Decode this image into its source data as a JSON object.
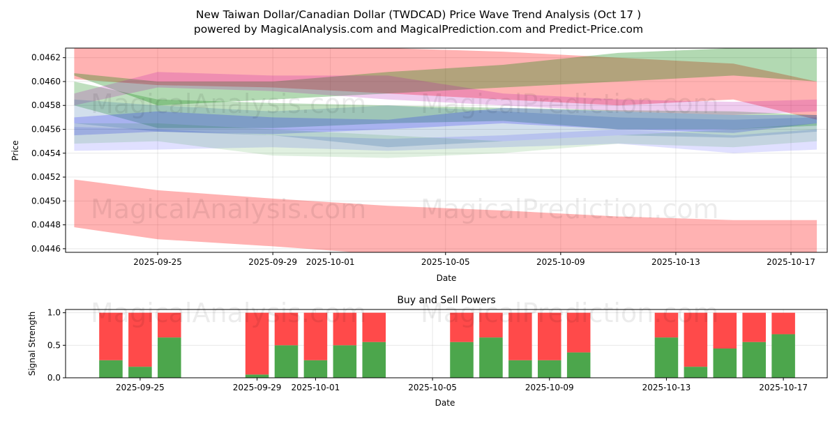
{
  "chart_data": [
    {
      "type": "area",
      "title_line1": "New Taiwan Dollar/Canadian Dollar (TWDCAD) Price Wave Trend Analysis (Oct 17 )",
      "title_line2": "powered by MagicalAnalysis.com and MagicalPrediction.com and Predict-Price.com",
      "xlabel": "Date",
      "ylabel": "Price",
      "x_origin_date": "2025-09-25",
      "xlim_days": [
        -3.2,
        23.26
      ],
      "ylim": [
        0.04457,
        0.04628
      ],
      "grid": true,
      "xticks": [
        {
          "day": 0,
          "label": "2025-09-25"
        },
        {
          "day": 4,
          "label": "2025-09-29"
        },
        {
          "day": 6,
          "label": "2025-10-01"
        },
        {
          "day": 10,
          "label": "2025-10-05"
        },
        {
          "day": 14,
          "label": "2025-10-09"
        },
        {
          "day": 18,
          "label": "2025-10-13"
        },
        {
          "day": 22,
          "label": "2025-10-17"
        }
      ],
      "yticks": [
        0.0446,
        0.0448,
        0.045,
        0.0452,
        0.0454,
        0.0456,
        0.0458,
        0.046,
        0.0462
      ],
      "ytick_labels": [
        "0.0446",
        "0.0448",
        "0.0450",
        "0.0452",
        "0.0454",
        "0.0456",
        "0.0458",
        "0.0460",
        "0.0462"
      ],
      "band_days": [
        -2.9,
        0,
        4,
        8,
        12,
        16,
        20,
        22.9
      ],
      "bands": [
        {
          "name": "red-upper",
          "color": "#ff0000",
          "alpha": 0.3,
          "upper": [
            0.04632,
            0.04632,
            0.04632,
            0.04628,
            0.04625,
            0.0462,
            0.04615,
            0.046
          ],
          "lower": [
            0.04602,
            0.04597,
            0.04595,
            0.0459,
            0.04585,
            0.0458,
            0.04585,
            0.04568
          ]
        },
        {
          "name": "green-upper",
          "color": "#008000",
          "alpha": 0.3,
          "upper": [
            0.04607,
            0.046,
            0.046,
            0.04608,
            0.04614,
            0.04624,
            0.04628,
            0.04628
          ],
          "lower": [
            0.04605,
            0.0458,
            0.04585,
            0.0459,
            0.04595,
            0.046,
            0.04605,
            0.046
          ]
        },
        {
          "name": "green-mid",
          "color": "#008000",
          "alpha": 0.25,
          "upper": [
            0.046,
            0.04585,
            0.04582,
            0.0458,
            0.04578,
            0.04576,
            0.04575,
            0.04572
          ],
          "lower": [
            0.0458,
            0.04561,
            0.04561,
            0.04565,
            0.04567,
            0.0456,
            0.0456,
            0.04563
          ]
        },
        {
          "name": "purple",
          "color": "#b000b0",
          "alpha": 0.2,
          "upper": [
            0.0459,
            0.04608,
            0.04605,
            0.04605,
            0.0459,
            0.04585,
            0.04583,
            0.04585
          ],
          "lower": [
            0.0458,
            0.04595,
            0.04592,
            0.04585,
            0.0458,
            0.04575,
            0.04572,
            0.04575
          ]
        },
        {
          "name": "teal",
          "color": "#2060a0",
          "alpha": 0.2,
          "upper": [
            0.04585,
            0.0458,
            0.04575,
            0.0458,
            0.04575,
            0.0457,
            0.04568,
            0.0457
          ],
          "lower": [
            0.04565,
            0.04558,
            0.04555,
            0.04545,
            0.0455,
            0.04555,
            0.04553,
            0.04558
          ]
        },
        {
          "name": "blue",
          "color": "#0000ff",
          "alpha": 0.2,
          "upper": [
            0.0457,
            0.04575,
            0.0457,
            0.04568,
            0.04578,
            0.04575,
            0.04572,
            0.04572
          ],
          "lower": [
            0.04555,
            0.04558,
            0.04556,
            0.0456,
            0.04565,
            0.0456,
            0.04557,
            0.04565
          ]
        },
        {
          "name": "light-blue",
          "color": "#0000ff",
          "alpha": 0.12,
          "upper": [
            0.04562,
            0.0456,
            0.04555,
            0.04552,
            0.04555,
            0.0456,
            0.04555,
            0.0456
          ],
          "lower": [
            0.04542,
            0.04543,
            0.04545,
            0.04542,
            0.04545,
            0.04548,
            0.0454,
            0.04543
          ]
        },
        {
          "name": "light-green",
          "color": "#008000",
          "alpha": 0.12,
          "upper": [
            0.04565,
            0.04565,
            0.0456,
            0.04555,
            0.0455,
            0.04555,
            0.0456,
            0.04565
          ],
          "lower": [
            0.04548,
            0.0455,
            0.04538,
            0.04536,
            0.0454,
            0.04548,
            0.04545,
            0.0455
          ]
        },
        {
          "name": "red-lower",
          "color": "#ff0000",
          "alpha": 0.3,
          "upper": [
            0.04518,
            0.04509,
            0.04502,
            0.04496,
            0.04492,
            0.04487,
            0.04484,
            0.04484
          ],
          "lower": [
            0.04478,
            0.04468,
            0.04462,
            0.04455,
            0.04452,
            0.0445,
            0.04448,
            0.04448
          ]
        }
      ]
    },
    {
      "type": "bar",
      "title": "Buy and Sell Powers",
      "xlabel": "Date",
      "ylabel": "Signal Strength",
      "x_origin_date": "2025-09-25",
      "xlim_days": [
        -2.55,
        23.5
      ],
      "ylim": [
        0,
        1.05
      ],
      "yticks": [
        0,
        0.5,
        1
      ],
      "ytick_labels": [
        "0.0",
        "0.5",
        "1.0"
      ],
      "xticks": [
        {
          "day": 0,
          "label": "2025-09-25"
        },
        {
          "day": 4,
          "label": "2025-09-29"
        },
        {
          "day": 6,
          "label": "2025-10-01"
        },
        {
          "day": 10,
          "label": "2025-10-05"
        },
        {
          "day": 14,
          "label": "2025-10-09"
        },
        {
          "day": 18,
          "label": "2025-10-13"
        },
        {
          "day": 22,
          "label": "2025-10-17"
        }
      ],
      "categories": [
        "2025-09-24",
        "2025-09-25",
        "2025-09-26",
        "2025-09-29",
        "2025-09-30",
        "2025-10-01",
        "2025-10-02",
        "2025-10-03",
        "2025-10-06",
        "2025-10-07",
        "2025-10-08",
        "2025-10-09",
        "2025-10-10",
        "2025-10-13",
        "2025-10-14",
        "2025-10-15",
        "2025-10-16",
        "2025-10-17"
      ],
      "days": [
        -1,
        0,
        1,
        4,
        5,
        6,
        7,
        8,
        11,
        12,
        13,
        14,
        15,
        18,
        19,
        20,
        21,
        22
      ],
      "series": [
        {
          "name": "Buy",
          "color": "#4ca64c",
          "values": [
            0.27,
            0.17,
            0.62,
            0.05,
            0.5,
            0.27,
            0.5,
            0.55,
            0.55,
            0.62,
            0.27,
            0.27,
            0.39,
            0.62,
            0.17,
            0.45,
            0.55,
            0.67
          ]
        },
        {
          "name": "Sell",
          "color": "#ff4a4a",
          "values": [
            0.73,
            0.83,
            0.38,
            0.95,
            0.5,
            0.73,
            0.5,
            0.45,
            0.45,
            0.38,
            0.73,
            0.73,
            0.61,
            0.38,
            0.83,
            0.55,
            0.45,
            0.33
          ]
        }
      ]
    }
  ],
  "watermarks": [
    "MagicalAnalysis.com",
    "MagicalPrediction.com"
  ]
}
